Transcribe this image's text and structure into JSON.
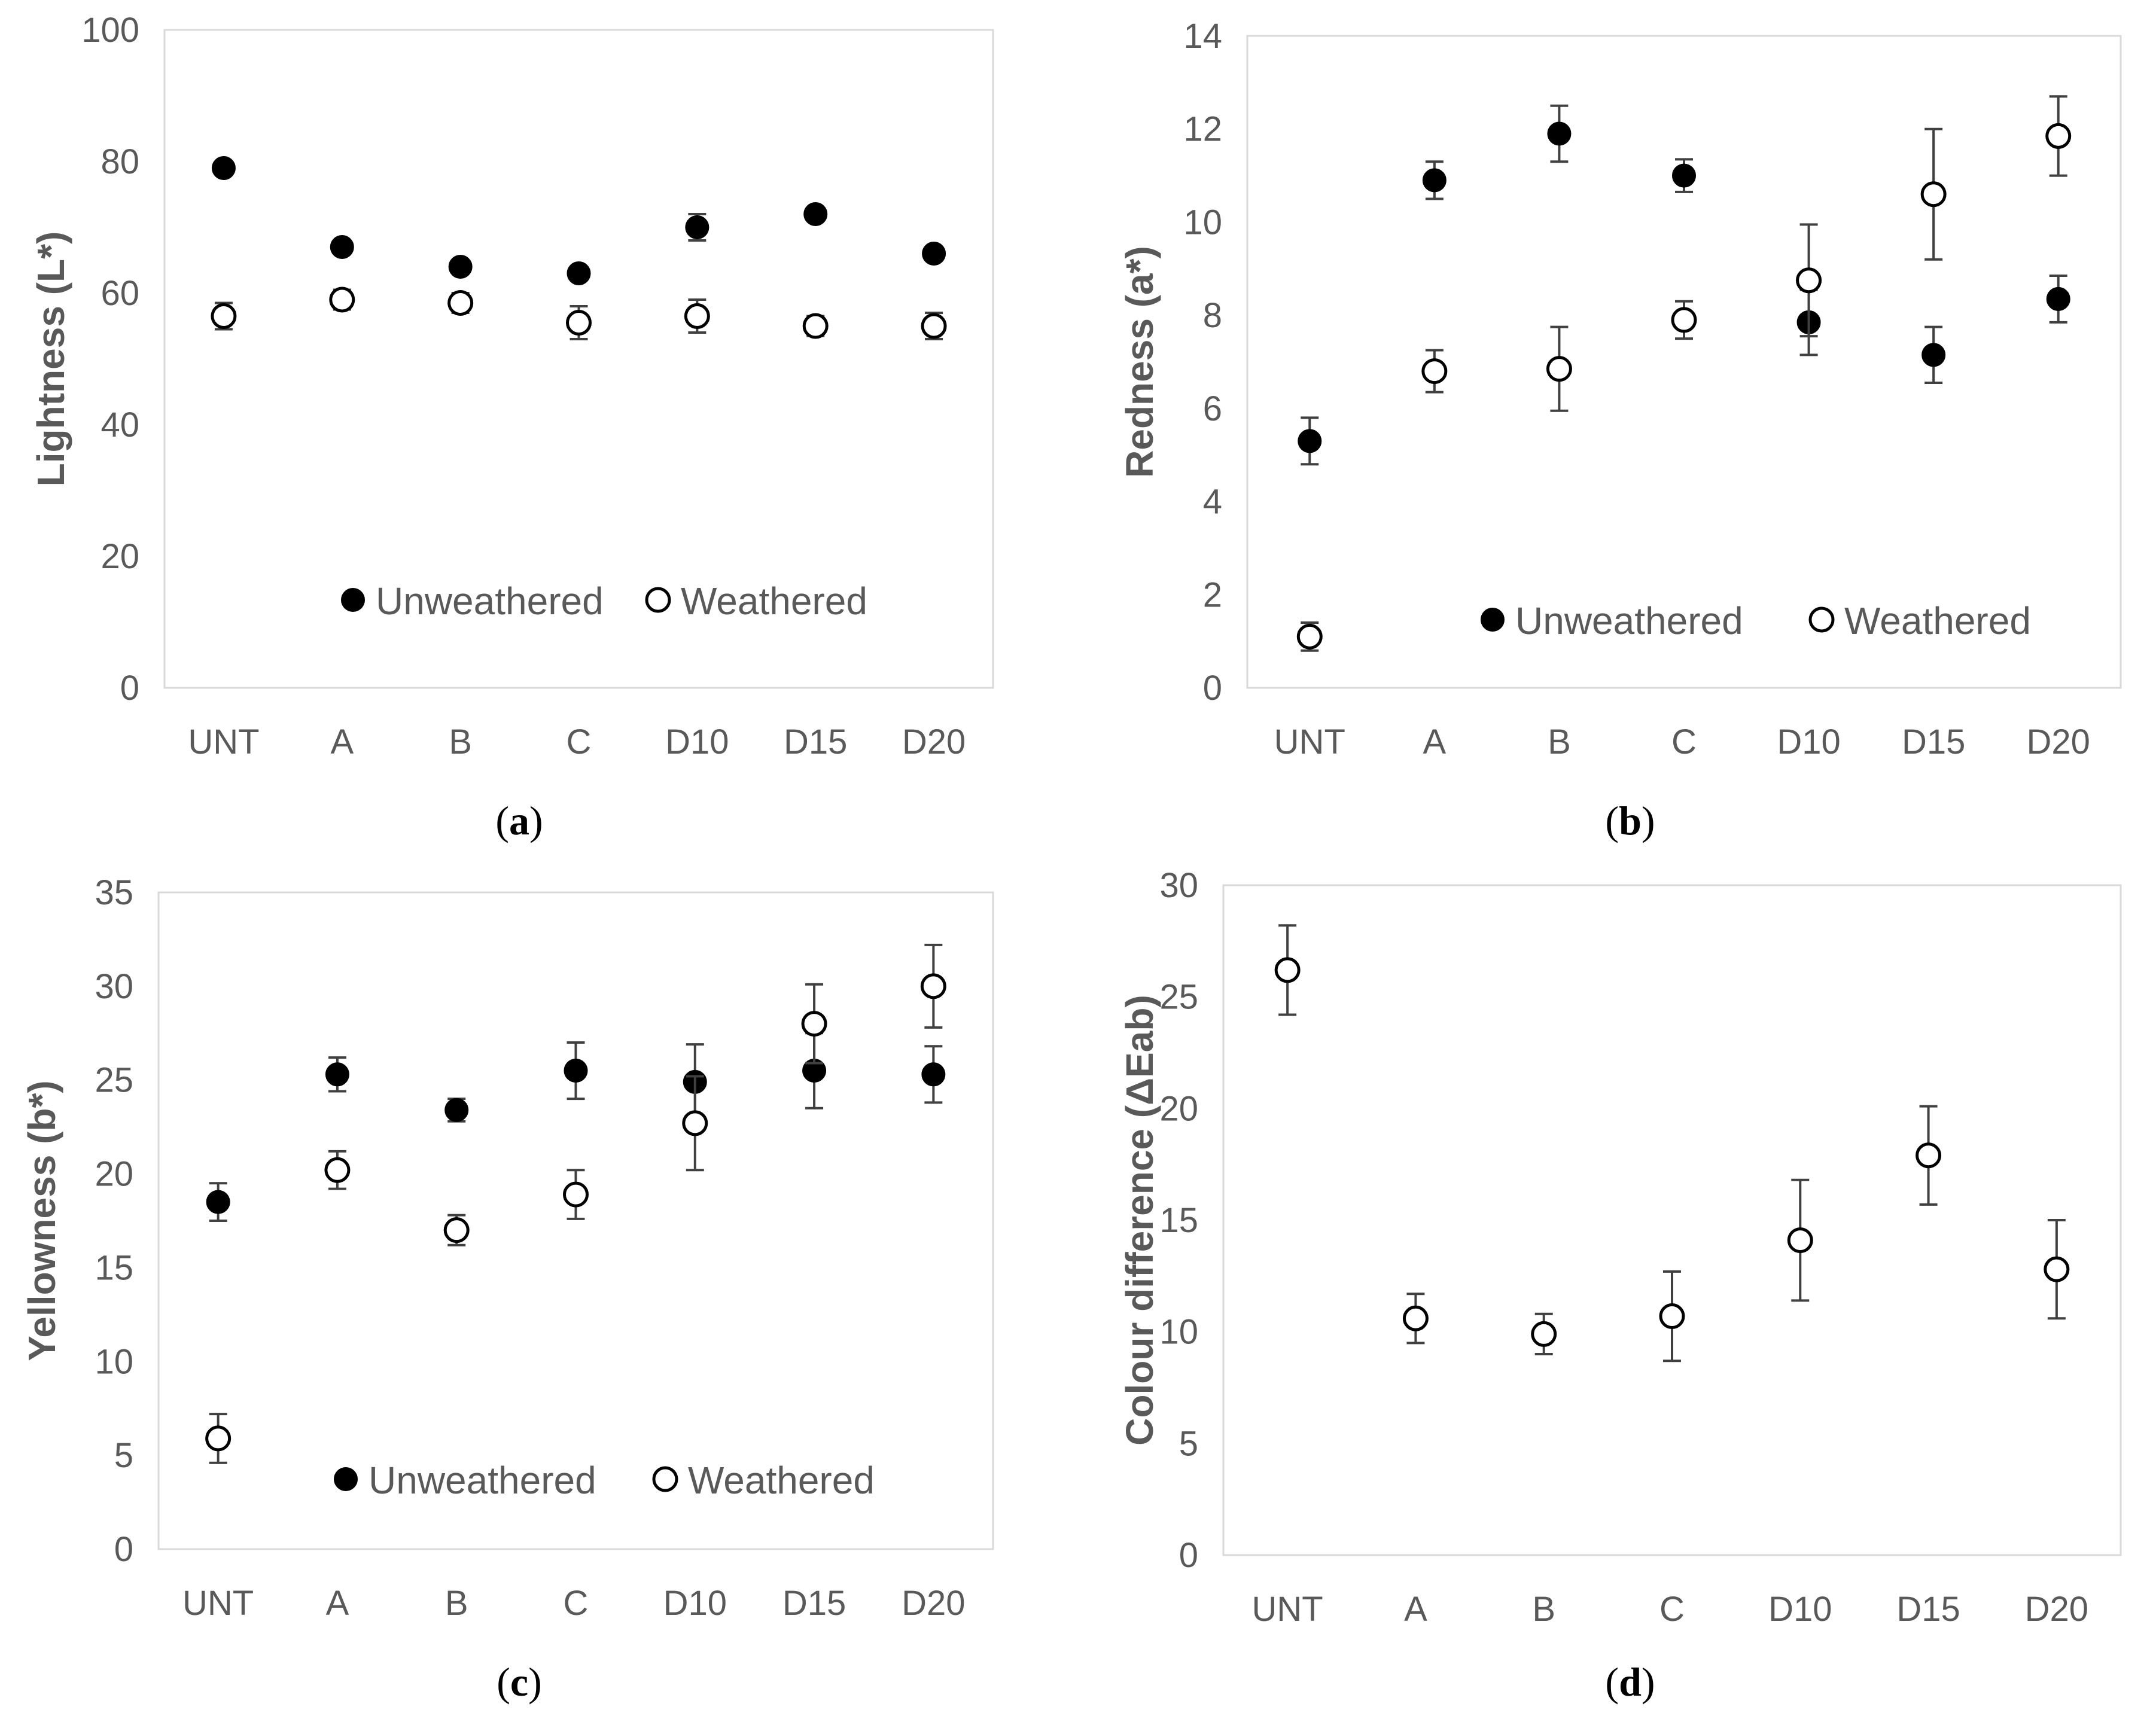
{
  "colors": {
    "marker": "#000000",
    "errorbar": "#404040",
    "text": "#595959",
    "frame": "#d9d9d9"
  },
  "chart_data": [
    {
      "type": "scatter",
      "panel_label": "a",
      "title": "",
      "ylabel": "Lightness (L*)",
      "xlabel": "",
      "categories": [
        "UNT",
        "A",
        "B",
        "C",
        "D10",
        "D15",
        "D20"
      ],
      "ylim": [
        0,
        100
      ],
      "yticks": [
        0,
        20,
        40,
        60,
        80,
        100
      ],
      "legend_position": "bottom-center",
      "series": [
        {
          "name": "Unweathered",
          "marker": "filled-circle",
          "values": [
            79,
            67,
            64,
            63,
            70,
            72,
            66
          ],
          "errors": [
            1,
            1,
            1,
            1,
            2,
            1,
            1
          ]
        },
        {
          "name": "Weathered",
          "marker": "open-circle",
          "values": [
            56.5,
            59,
            58.5,
            55.5,
            56.5,
            55,
            55
          ],
          "errors": [
            2,
            1.5,
            1.5,
            2.5,
            2.5,
            1.5,
            2
          ]
        }
      ]
    },
    {
      "type": "scatter",
      "panel_label": "b",
      "title": "",
      "ylabel": "Redness (a*)",
      "xlabel": "",
      "categories": [
        "UNT",
        "A",
        "B",
        "C",
        "D10",
        "D15",
        "D20"
      ],
      "ylim": [
        0,
        14
      ],
      "yticks": [
        0,
        2,
        4,
        6,
        8,
        10,
        12,
        14
      ],
      "legend_position": "bottom-center",
      "series": [
        {
          "name": "Unweathered",
          "marker": "filled-circle",
          "values": [
            5.3,
            10.9,
            11.9,
            11.0,
            7.85,
            7.15,
            8.35
          ],
          "errors": [
            0.5,
            0.4,
            0.6,
            0.35,
            0.7,
            0.6,
            0.5
          ]
        },
        {
          "name": "Weathered",
          "marker": "open-circle",
          "values": [
            1.1,
            6.8,
            6.85,
            7.9,
            8.75,
            10.6,
            11.85
          ],
          "errors": [
            0.3,
            0.45,
            0.9,
            0.4,
            1.2,
            1.4,
            0.85
          ]
        }
      ]
    },
    {
      "type": "scatter",
      "panel_label": "c",
      "title": "",
      "ylabel": "Yellowness (b*)",
      "xlabel": "",
      "categories": [
        "UNT",
        "A",
        "B",
        "C",
        "D10",
        "D15",
        "D20"
      ],
      "ylim": [
        0,
        35
      ],
      "yticks": [
        0,
        5,
        10,
        15,
        20,
        25,
        30,
        35
      ],
      "legend_position": "bottom-center",
      "series": [
        {
          "name": "Unweathered",
          "marker": "filled-circle",
          "values": [
            18.5,
            25.3,
            23.4,
            25.5,
            24.9,
            25.5,
            25.3
          ],
          "errors": [
            1,
            0.9,
            0.6,
            1.5,
            2.0,
            2.0,
            1.5
          ]
        },
        {
          "name": "Weathered",
          "marker": "open-circle",
          "values": [
            5.9,
            20.2,
            17.0,
            18.9,
            22.7,
            28.0,
            30.0
          ],
          "errors": [
            1.3,
            1.0,
            0.8,
            1.3,
            2.5,
            2.1,
            2.2
          ]
        }
      ]
    },
    {
      "type": "scatter",
      "panel_label": "d",
      "title": "",
      "ylabel": "Colour difference (ΔEab)",
      "xlabel": "",
      "categories": [
        "UNT",
        "A",
        "B",
        "C",
        "D10",
        "D15",
        "D20"
      ],
      "ylim": [
        0,
        30
      ],
      "yticks": [
        0,
        5,
        10,
        15,
        20,
        25,
        30
      ],
      "legend_position": "none",
      "series": [
        {
          "name": "ΔEab",
          "marker": "open-circle",
          "values": [
            26.2,
            10.6,
            9.9,
            10.7,
            14.1,
            17.9,
            12.8
          ],
          "errors": [
            2.0,
            1.1,
            0.9,
            2.0,
            2.7,
            2.2,
            2.2
          ]
        }
      ]
    }
  ]
}
